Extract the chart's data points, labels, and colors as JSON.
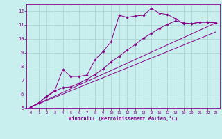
{
  "title": "",
  "xlabel": "Windchill (Refroidissement éolien,°C)",
  "bg_color": "#c8eeee",
  "grid_color": "#aacccc",
  "line_color": "#880088",
  "xlim": [
    -0.5,
    23.5
  ],
  "ylim": [
    5,
    12.5
  ],
  "xticks": [
    0,
    1,
    2,
    3,
    4,
    5,
    6,
    7,
    8,
    9,
    10,
    11,
    12,
    13,
    14,
    15,
    16,
    17,
    18,
    19,
    20,
    21,
    22,
    23
  ],
  "yticks": [
    5,
    6,
    7,
    8,
    9,
    10,
    11,
    12
  ],
  "line1_x": [
    0,
    1,
    2,
    3,
    4,
    5,
    6,
    7,
    8,
    9,
    10,
    11,
    12,
    13,
    14,
    15,
    16,
    17,
    18,
    19,
    20,
    21,
    22,
    23
  ],
  "line1_y": [
    5.1,
    5.4,
    5.9,
    6.3,
    7.8,
    7.3,
    7.3,
    7.4,
    8.5,
    9.1,
    9.8,
    11.7,
    11.55,
    11.65,
    11.7,
    12.2,
    11.85,
    11.75,
    11.45,
    11.1,
    11.1,
    11.2,
    11.2,
    11.15
  ],
  "line2_x": [
    0,
    23
  ],
  "line2_y": [
    5.1,
    11.15
  ],
  "line3_x": [
    0,
    1,
    2,
    3,
    4,
    5,
    6,
    7,
    8,
    9,
    10,
    11,
    12,
    13,
    14,
    15,
    16,
    17,
    18,
    19,
    20,
    21,
    22,
    23
  ],
  "line3_y": [
    5.1,
    5.4,
    5.85,
    6.25,
    6.5,
    6.55,
    6.8,
    7.1,
    7.45,
    7.85,
    8.35,
    8.75,
    9.2,
    9.6,
    10.05,
    10.4,
    10.75,
    11.05,
    11.3,
    11.15,
    11.1,
    11.2,
    11.2,
    11.15
  ],
  "line4_x": [
    0,
    23
  ],
  "line4_y": [
    5.1,
    11.15
  ]
}
